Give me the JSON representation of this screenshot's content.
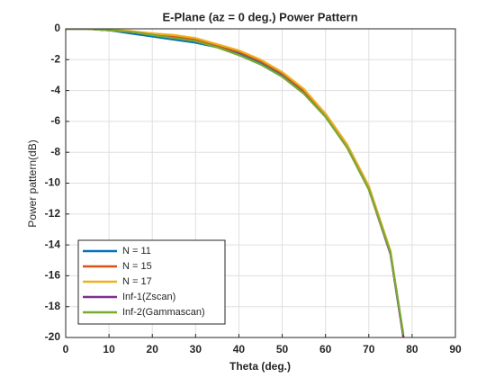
{
  "chart_data": {
    "type": "line",
    "title": "E-Plane (az = 0 deg.) Power Pattern",
    "xlabel": "Theta (deg.)",
    "ylabel": "Power pattern(dB)",
    "x": [
      0,
      5,
      10,
      15,
      20,
      25,
      30,
      35,
      40,
      45,
      50,
      55,
      60,
      65,
      70,
      75,
      78
    ],
    "series": [
      {
        "name": "N = 11",
        "color": "#0072BD",
        "values": [
          0,
          0,
          -0.1,
          -0.3,
          -0.5,
          -0.7,
          -0.9,
          -1.2,
          -1.6,
          -2.2,
          -3.0,
          -4.1,
          -5.6,
          -7.6,
          -10.3,
          -14.5,
          -20
        ]
      },
      {
        "name": "N = 15",
        "color": "#D95319",
        "values": [
          0,
          0,
          -0.1,
          -0.2,
          -0.4,
          -0.5,
          -0.7,
          -1.1,
          -1.5,
          -2.1,
          -2.9,
          -4.0,
          -5.5,
          -7.5,
          -10.2,
          -14.4,
          -20
        ]
      },
      {
        "name": "N = 17",
        "color": "#EDB120",
        "values": [
          0,
          0,
          -0.05,
          -0.15,
          -0.3,
          -0.4,
          -0.6,
          -1.0,
          -1.4,
          -2.0,
          -2.8,
          -3.9,
          -5.5,
          -7.5,
          -10.2,
          -14.4,
          -20
        ]
      },
      {
        "name": "Inf-1(Zscan)",
        "color": "#7E2F8E",
        "values": [
          0,
          0,
          -0.1,
          -0.2,
          -0.4,
          -0.6,
          -0.8,
          -1.2,
          -1.7,
          -2.3,
          -3.1,
          -4.2,
          -5.7,
          -7.7,
          -10.4,
          -14.6,
          -20
        ]
      },
      {
        "name": "Inf-2(Gammascan)",
        "color": "#77AC30",
        "values": [
          0,
          0,
          -0.1,
          -0.2,
          -0.4,
          -0.6,
          -0.8,
          -1.2,
          -1.7,
          -2.3,
          -3.1,
          -4.2,
          -5.7,
          -7.7,
          -10.4,
          -14.5,
          -19.8
        ]
      }
    ],
    "xlim": [
      0,
      90
    ],
    "xticks": [
      0,
      10,
      20,
      30,
      40,
      50,
      60,
      70,
      80,
      90
    ],
    "ylim": [
      -20,
      0
    ],
    "yticks": [
      0,
      -2,
      -4,
      -6,
      -8,
      -10,
      -12,
      -14,
      -16,
      -18,
      -20
    ],
    "grid": true,
    "legend": "lower-left"
  }
}
